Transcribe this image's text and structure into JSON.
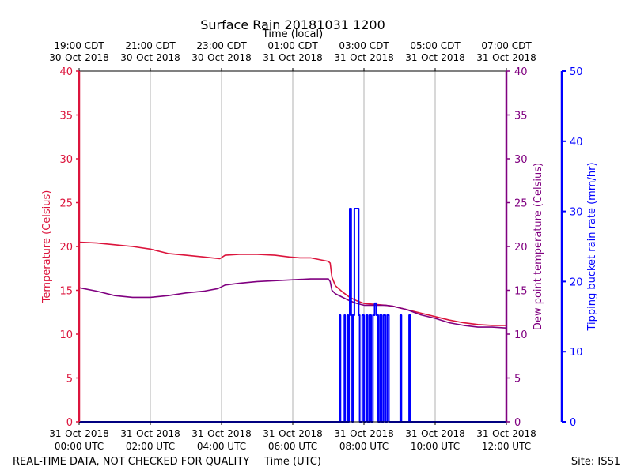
{
  "chart_data": {
    "type": "line",
    "title": "Surface Rain 20181031 1200",
    "top_axis_label": "Time (local)",
    "xlabel": "Time (UTC)",
    "ylabel_left": "Temperature (Celsius)",
    "ylabel_right": "Dew point temperature (Celsius)",
    "ylabel_far_right": "Tipping bucket rain rate (mm/hr)",
    "footer_left": "REAL-TIME DATA, NOT CHECKED FOR QUALITY",
    "footer_right": "Site: ISS1",
    "xlim_hours": [
      0,
      12
    ],
    "ylim_temp": [
      0,
      40
    ],
    "ylim_rain": [
      0,
      50
    ],
    "x_ticks_hours": [
      0,
      2,
      4,
      6,
      8,
      10,
      12
    ],
    "bottom_tick_labels": [
      [
        "31-Oct-2018",
        "00:00 UTC"
      ],
      [
        "31-Oct-2018",
        "02:00 UTC"
      ],
      [
        "31-Oct-2018",
        "04:00 UTC"
      ],
      [
        "31-Oct-2018",
        "06:00 UTC"
      ],
      [
        "31-Oct-2018",
        "08:00 UTC"
      ],
      [
        "31-Oct-2018",
        "10:00 UTC"
      ],
      [
        "31-Oct-2018",
        "12:00 UTC"
      ]
    ],
    "top_tick_labels": [
      [
        "19:00 CDT",
        "30-Oct-2018"
      ],
      [
        "21:00 CDT",
        "30-Oct-2018"
      ],
      [
        "23:00 CDT",
        "30-Oct-2018"
      ],
      [
        "01:00 CDT",
        "31-Oct-2018"
      ],
      [
        "03:00 CDT",
        "31-Oct-2018"
      ],
      [
        "05:00 CDT",
        "31-Oct-2018"
      ],
      [
        "07:00 CDT",
        "31-Oct-2018"
      ]
    ],
    "temp_ticks": [
      0,
      5,
      10,
      15,
      20,
      25,
      30,
      35,
      40
    ],
    "rain_ticks": [
      0,
      10,
      20,
      30,
      40,
      50
    ],
    "colors": {
      "temperature": "#dc143c",
      "dewpoint": "#800080",
      "rain": "#0000ff",
      "grid": "#b0b0b0"
    },
    "series": [
      {
        "name": "Temperature",
        "axis": "temp",
        "x": [
          0,
          0.5,
          1,
          1.5,
          2,
          2.5,
          3,
          3.5,
          3.95,
          4.1,
          4.5,
          5,
          5.5,
          5.9,
          6.2,
          6.5,
          7.0,
          7.05,
          7.1,
          7.2,
          7.4,
          7.6,
          7.8,
          8.0,
          8.3,
          8.6,
          8.8,
          9.2,
          9.6,
          10.0,
          10.4,
          10.8,
          11.2,
          11.6,
          12.0
        ],
        "values": [
          20.5,
          20.4,
          20.2,
          20.0,
          19.7,
          19.2,
          19.0,
          18.8,
          18.6,
          19.0,
          19.1,
          19.1,
          19.0,
          18.8,
          18.7,
          18.7,
          18.3,
          18.1,
          16.5,
          15.5,
          14.8,
          14.2,
          13.8,
          13.5,
          13.4,
          13.3,
          13.2,
          12.8,
          12.4,
          12.0,
          11.6,
          11.3,
          11.1,
          11.0,
          11.0
        ]
      },
      {
        "name": "Dew point",
        "axis": "temp",
        "x": [
          0,
          0.5,
          1,
          1.5,
          2,
          2.5,
          3,
          3.5,
          3.9,
          4.1,
          4.5,
          5,
          5.5,
          6,
          6.5,
          7.0,
          7.05,
          7.1,
          7.2,
          7.4,
          7.6,
          7.8,
          8.0,
          8.3,
          8.6,
          8.8,
          9.2,
          9.6,
          10.0,
          10.4,
          10.8,
          11.2,
          11.6,
          12.0
        ],
        "values": [
          15.3,
          14.9,
          14.4,
          14.2,
          14.2,
          14.4,
          14.7,
          14.9,
          15.2,
          15.6,
          15.8,
          16.0,
          16.1,
          16.2,
          16.3,
          16.3,
          16.0,
          15.0,
          14.6,
          14.2,
          13.8,
          13.5,
          13.3,
          13.3,
          13.3,
          13.2,
          12.8,
          12.2,
          11.8,
          11.3,
          11.0,
          10.8,
          10.8,
          10.7
        ]
      },
      {
        "name": "Tipping bucket rain rate",
        "axis": "rain",
        "x": [
          0,
          7.32,
          7.32,
          7.34,
          7.34,
          7.45,
          7.45,
          7.47,
          7.47,
          7.53,
          7.53,
          7.55,
          7.55,
          7.58,
          7.58,
          7.6,
          7.6,
          7.64,
          7.64,
          7.67,
          7.67,
          7.69,
          7.69,
          7.73,
          7.73,
          7.85,
          7.85,
          7.88,
          7.88,
          7.95,
          7.95,
          8.0,
          8.0,
          8.06,
          8.06,
          8.1,
          8.1,
          8.15,
          8.15,
          8.2,
          8.2,
          8.25,
          8.25,
          8.3,
          8.3,
          8.35,
          8.35,
          8.4,
          8.4,
          8.45,
          8.45,
          8.5,
          8.5,
          8.55,
          8.55,
          8.6,
          8.6,
          8.65,
          8.65,
          8.7,
          8.7,
          9.02,
          9.02,
          9.05,
          9.05,
          9.27,
          9.27,
          9.3,
          9.3,
          12.0
        ],
        "values": [
          0,
          0,
          15.2,
          15.2,
          0,
          0,
          15.2,
          15.2,
          0,
          0,
          15.2,
          15.2,
          0,
          0,
          15.2,
          15.2,
          30.4,
          30.4,
          15.2,
          15.2,
          0,
          0,
          15.2,
          15.2,
          30.4,
          30.4,
          15.2,
          15.2,
          0,
          0,
          15.2,
          15.2,
          0,
          0,
          15.2,
          15.2,
          0,
          0,
          15.2,
          15.2,
          0,
          0,
          15.2,
          15.2,
          16.9,
          16.9,
          15.2,
          15.2,
          0,
          0,
          15.2,
          15.2,
          0,
          0,
          15.2,
          15.2,
          0,
          0,
          15.2,
          15.2,
          0,
          0,
          15.2,
          15.2,
          0,
          0,
          15.2,
          15.2,
          0,
          0
        ]
      }
    ]
  }
}
